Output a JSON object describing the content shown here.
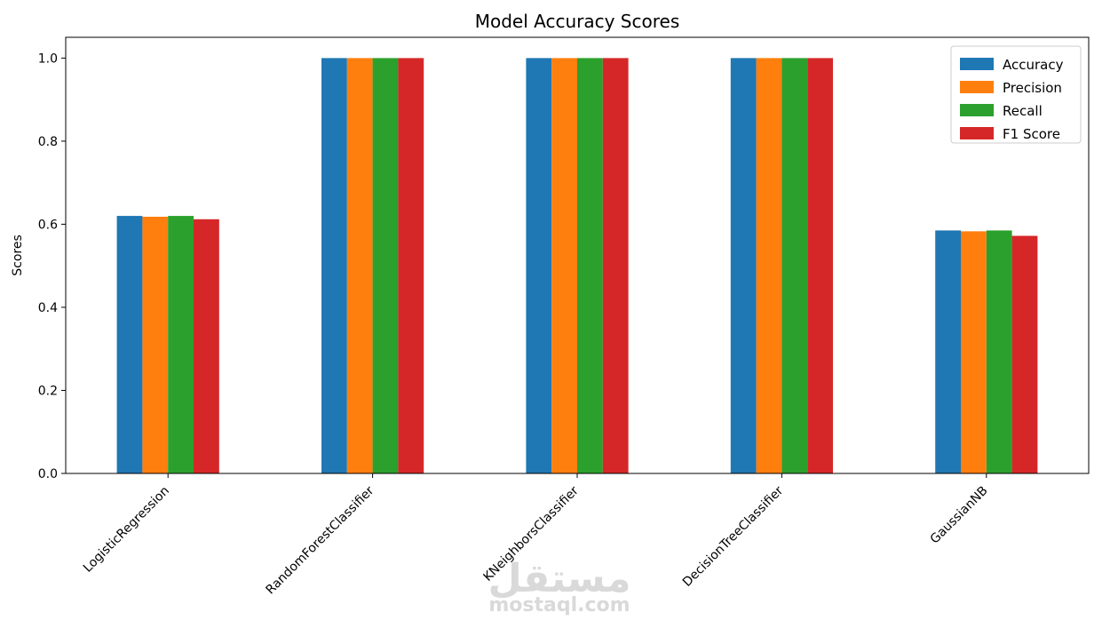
{
  "chart_data": {
    "type": "bar",
    "title": "Model Accuracy Scores",
    "xlabel": "",
    "ylabel": "Scores",
    "ylim": [
      0,
      1.05
    ],
    "yticks": [
      "0.0",
      "0.2",
      "0.4",
      "0.6",
      "0.8",
      "1.0"
    ],
    "categories": [
      "LogisticRegression",
      "RandomForestClassifier",
      "KNeighborsClassifier",
      "DecisionTreeClassifier",
      "GaussianNB"
    ],
    "series": [
      {
        "name": "Accuracy",
        "color": "#1f77b4",
        "values": [
          0.62,
          1.0,
          1.0,
          1.0,
          0.585
        ]
      },
      {
        "name": "Precision",
        "color": "#ff7f0e",
        "values": [
          0.618,
          1.0,
          1.0,
          1.0,
          0.583
        ]
      },
      {
        "name": "Recall",
        "color": "#2ca02c",
        "values": [
          0.62,
          1.0,
          1.0,
          1.0,
          0.585
        ]
      },
      {
        "name": "F1 Score",
        "color": "#d62728",
        "values": [
          0.612,
          1.0,
          1.0,
          1.0,
          0.572
        ]
      }
    ],
    "grid": false,
    "legend_position": "top-right"
  },
  "watermark": {
    "arabic": "مستقل",
    "latin": "mostaql.com"
  }
}
